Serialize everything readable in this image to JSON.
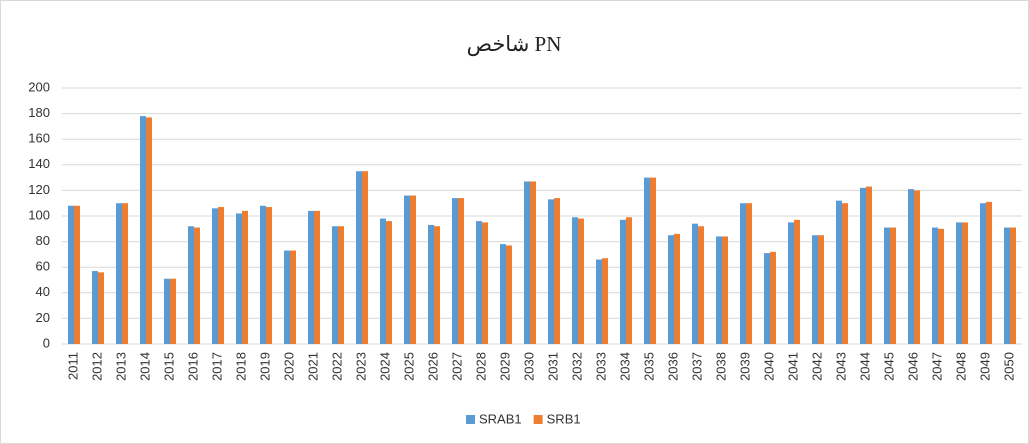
{
  "chart_data": {
    "type": "bar",
    "title": "شاخص PN",
    "categories": [
      "2011",
      "2012",
      "2013",
      "2014",
      "2015",
      "2016",
      "2017",
      "2018",
      "2019",
      "2020",
      "2021",
      "2022",
      "2023",
      "2024",
      "2025",
      "2026",
      "2027",
      "2028",
      "2029",
      "2030",
      "2031",
      "2032",
      "2033",
      "2034",
      "2035",
      "2036",
      "2037",
      "2038",
      "2039",
      "2040",
      "2041",
      "2042",
      "2043",
      "2044",
      "2045",
      "2046",
      "2047",
      "2048",
      "2049",
      "2050"
    ],
    "series": [
      {
        "name": "SRAB1",
        "color": "#5b9bd5",
        "values": [
          108,
          57,
          110,
          178,
          51,
          92,
          106,
          102,
          108,
          73,
          104,
          92,
          135,
          98,
          116,
          93,
          114,
          96,
          78,
          127,
          113,
          99,
          66,
          97,
          130,
          85,
          94,
          84,
          110,
          71,
          95,
          85,
          112,
          122,
          91,
          121,
          91,
          95,
          110,
          91
        ]
      },
      {
        "name": "SRB1",
        "color": "#ed7d31",
        "values": [
          108,
          56,
          110,
          177,
          51,
          91,
          107,
          104,
          107,
          73,
          104,
          92,
          135,
          96,
          116,
          92,
          114,
          95,
          77,
          127,
          114,
          98,
          67,
          99,
          130,
          86,
          92,
          84,
          110,
          72,
          97,
          85,
          110,
          123,
          91,
          120,
          90,
          95,
          111,
          91
        ]
      }
    ],
    "ylim": [
      0,
      200
    ],
    "yticks": [
      0,
      20,
      40,
      60,
      80,
      100,
      120,
      140,
      160,
      180,
      200
    ],
    "grid": true,
    "legend": "bottom"
  }
}
